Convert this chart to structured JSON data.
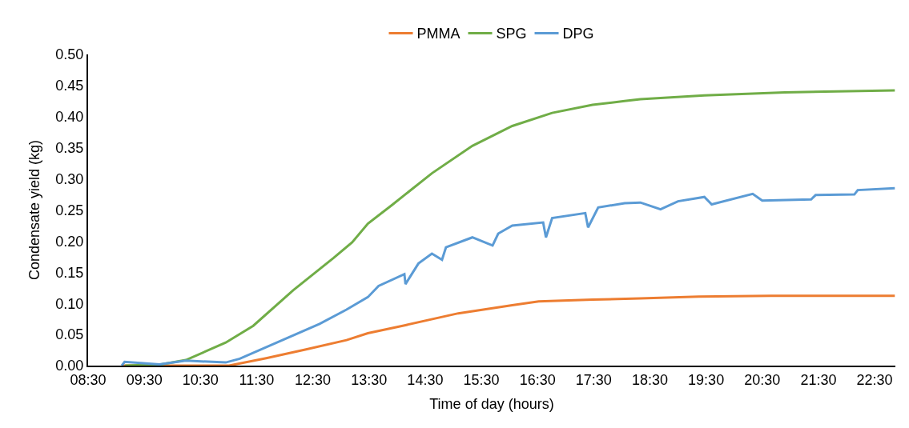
{
  "chart_data": {
    "type": "line",
    "xlabel": "Time of day (hours)",
    "ylabel": "Condensate yield (kg)",
    "xlim": [
      8.5,
      22.87
    ],
    "ylim": [
      0,
      0.5
    ],
    "xticks": [
      {
        "value": 8.5,
        "label": "08:30"
      },
      {
        "value": 9.5,
        "label": "09:30"
      },
      {
        "value": 10.5,
        "label": "10:30"
      },
      {
        "value": 11.5,
        "label": "11:30"
      },
      {
        "value": 12.5,
        "label": "12:30"
      },
      {
        "value": 13.5,
        "label": "13:30"
      },
      {
        "value": 14.5,
        "label": "14:30"
      },
      {
        "value": 15.5,
        "label": "15:30"
      },
      {
        "value": 16.5,
        "label": "16:30"
      },
      {
        "value": 17.5,
        "label": "17:30"
      },
      {
        "value": 18.5,
        "label": "18:30"
      },
      {
        "value": 19.5,
        "label": "19:30"
      },
      {
        "value": 20.5,
        "label": "20:30"
      },
      {
        "value": 21.5,
        "label": "21:30"
      },
      {
        "value": 22.5,
        "label": "22:30"
      }
    ],
    "yticks": [
      {
        "value": 0,
        "label": "0.00"
      },
      {
        "value": 0.05,
        "label": "0.05"
      },
      {
        "value": 0.1,
        "label": "0.10"
      },
      {
        "value": 0.15,
        "label": "0.15"
      },
      {
        "value": 0.2,
        "label": "0.20"
      },
      {
        "value": 0.25,
        "label": "0.25"
      },
      {
        "value": 0.3,
        "label": "0.30"
      },
      {
        "value": 0.35,
        "label": "0.35"
      },
      {
        "value": 0.4,
        "label": "0.40"
      },
      {
        "value": 0.45,
        "label": "0.45"
      },
      {
        "value": 0.5,
        "label": "0.50"
      }
    ],
    "grid": false,
    "legend": "top",
    "marker": "none",
    "line_style": "solid",
    "series": [
      {
        "name": "PMMA",
        "color": "#ed7d31",
        "x": [
          9.1,
          10.0,
          11.01,
          11.67,
          12.38,
          13.1,
          13.48,
          14.15,
          15.09,
          16.05,
          16.52,
          17.48,
          18.33,
          19.37,
          20.66,
          22.86
        ],
        "values": [
          0,
          0,
          0,
          0.012,
          0.026,
          0.041,
          0.052,
          0.065,
          0.084,
          0.097,
          0.103,
          0.106,
          0.108,
          0.111,
          0.112,
          0.112
        ]
      },
      {
        "name": "SPG",
        "color": "#70ad47",
        "x": [
          9.16,
          9.8,
          10.24,
          10.95,
          11.44,
          12.15,
          12.87,
          13.2,
          13.48,
          13.91,
          14.62,
          15.34,
          16.05,
          16.76,
          17.48,
          18.05,
          18.33,
          19.47,
          20.9,
          22.86
        ],
        "values": [
          0,
          0.002,
          0.009,
          0.037,
          0.064,
          0.121,
          0.173,
          0.198,
          0.228,
          0.258,
          0.309,
          0.353,
          0.385,
          0.406,
          0.419,
          0.425,
          0.428,
          0.434,
          0.439,
          0.442
        ]
      },
      {
        "name": "DPG",
        "color": "#5b9bd5",
        "x": [
          9.1,
          9.15,
          9.77,
          10.24,
          10.95,
          11.2,
          11.91,
          12.62,
          13.1,
          13.48,
          13.67,
          14.13,
          14.15,
          14.38,
          14.62,
          14.8,
          14.87,
          15.34,
          15.7,
          15.8,
          16.05,
          16.6,
          16.65,
          16.76,
          17.35,
          17.4,
          17.58,
          18.05,
          18.33,
          18.69,
          19.0,
          19.47,
          19.6,
          20.33,
          20.5,
          21.37,
          21.45,
          22.14,
          22.2,
          22.86
        ],
        "values": [
          0,
          0.006,
          0.002,
          0.008,
          0.005,
          0.011,
          0.039,
          0.067,
          0.09,
          0.11,
          0.128,
          0.147,
          0.131,
          0.164,
          0.18,
          0.17,
          0.19,
          0.206,
          0.193,
          0.212,
          0.225,
          0.23,
          0.206,
          0.237,
          0.245,
          0.222,
          0.254,
          0.261,
          0.262,
          0.251,
          0.264,
          0.271,
          0.259,
          0.276,
          0.265,
          0.267,
          0.274,
          0.275,
          0.282,
          0.285
        ]
      }
    ]
  }
}
